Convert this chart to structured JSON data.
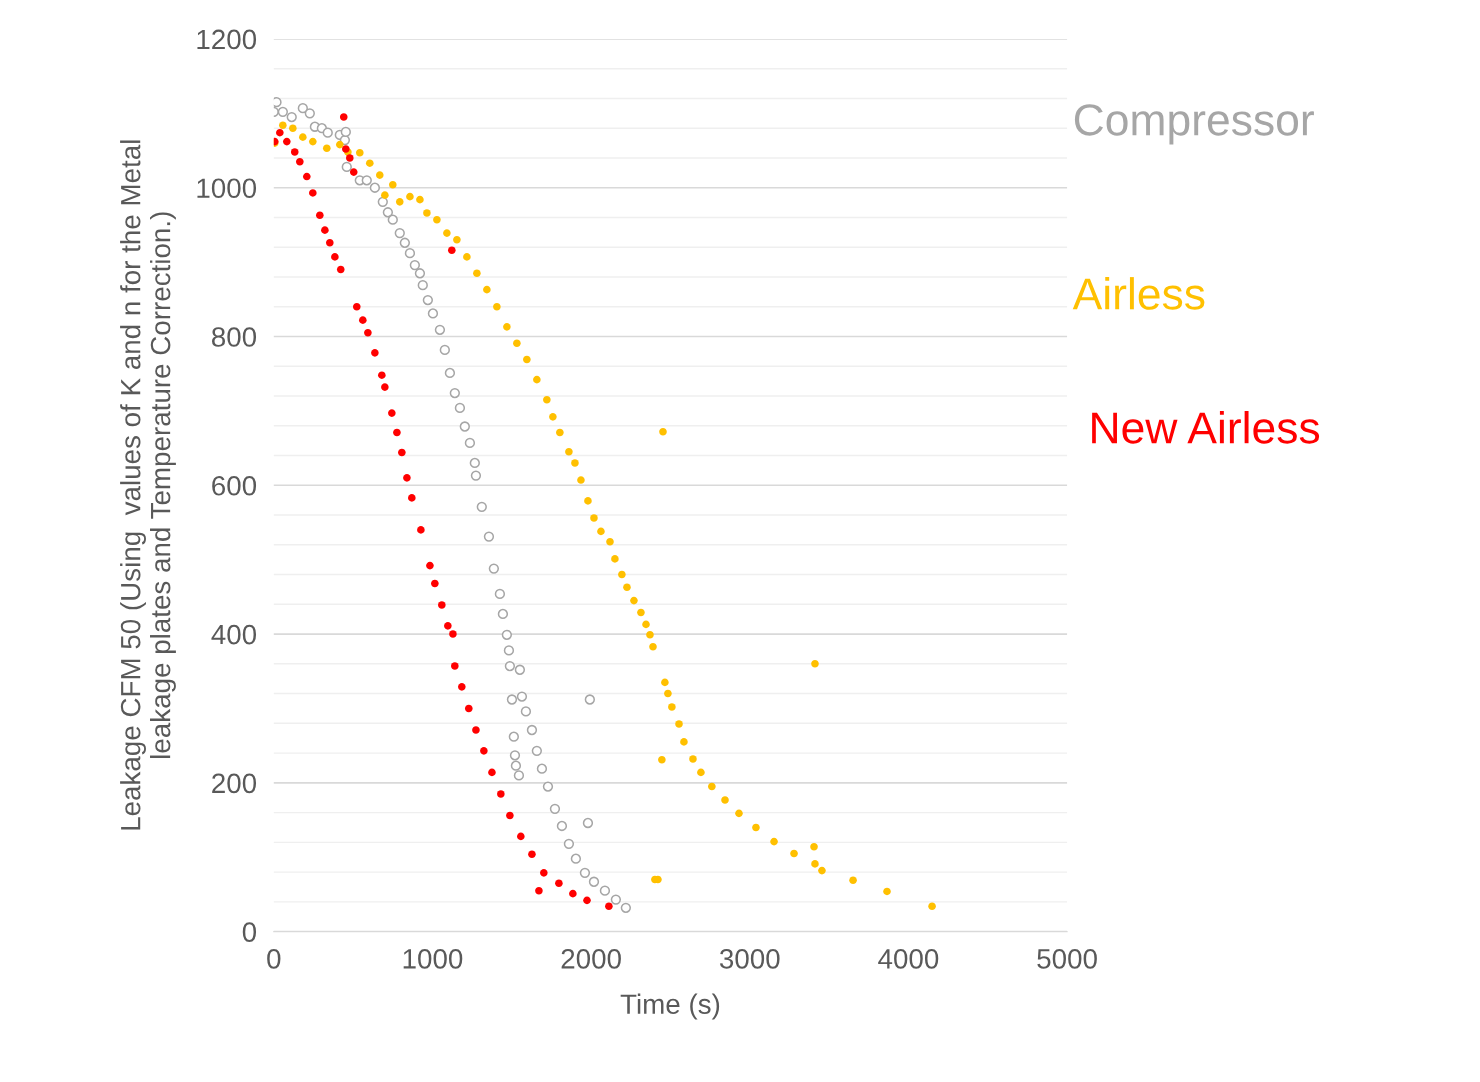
{
  "chart_data": {
    "type": "scatter",
    "xlabel": "Time (s)",
    "ylabel": "Leakage CFM 50 (Using  values of K and n for the Metal\nleakage plates and Temperature Correction.)",
    "xlim": [
      0,
      5000
    ],
    "xticks": [
      0,
      1000,
      2000,
      3000,
      4000,
      5000
    ],
    "ylim": [
      0,
      1200
    ],
    "yticks": [
      0,
      {
        "value": 40,
        "label": null
      },
      {
        "value": 80,
        "label": null
      },
      {
        "value": 120,
        "label": null
      },
      {
        "value": 160,
        "label": null
      },
      200,
      {
        "value": 240,
        "label": null
      },
      {
        "value": 280,
        "label": null
      },
      {
        "value": 320,
        "label": null
      },
      {
        "value": 360,
        "label": null
      },
      400,
      {
        "value": 440,
        "label": null
      },
      {
        "value": 480,
        "label": null
      },
      {
        "value": 520,
        "label": null
      },
      {
        "value": 560,
        "label": null
      },
      600,
      {
        "value": 640,
        "label": null
      },
      {
        "value": 680,
        "label": null
      },
      {
        "value": 720,
        "label": null
      },
      {
        "value": 760,
        "label": null
      },
      800,
      {
        "value": 840,
        "label": null
      },
      {
        "value": 880,
        "label": null
      },
      {
        "value": 920,
        "label": null
      },
      {
        "value": 960,
        "label": null
      },
      1000,
      {
        "value": 1040,
        "label": null
      },
      {
        "value": 1080,
        "label": null
      },
      {
        "value": 1120,
        "label": null
      },
      {
        "value": 1160,
        "label": null
      },
      1200
    ],
    "grid": "y",
    "marker": "circle",
    "legend": "right",
    "series": [
      {
        "name": "Compressor",
        "color": "#a6a6a6",
        "x": [
          0,
          17,
          57,
          113,
          183,
          227,
          259,
          303,
          340,
          416,
          448,
          454,
          460,
          542,
          586,
          637,
          687,
          719,
          750,
          794,
          826,
          858,
          889,
          921,
          939,
          971,
          1003,
          1047,
          1078,
          1110,
          1141,
          1173,
          1204,
          1236,
          1267,
          1274,
          1311,
          1356,
          1387,
          1425,
          1444,
          1469,
          1482,
          1488,
          1501,
          1513,
          1520,
          1526,
          1545,
          1551,
          1564,
          1589,
          1627,
          1658,
          1690,
          1728,
          1772,
          1816,
          1860,
          1904,
          1961,
          1980,
          1992,
          2018,
          2087,
          2156,
          2219
        ],
        "values": [
          1102,
          1115,
          1102,
          1095,
          1107,
          1100,
          1082,
          1080,
          1074,
          1071,
          1064,
          1075,
          1028,
          1010,
          1010,
          1000,
          981,
          967,
          957,
          939,
          926,
          912,
          896,
          885,
          869,
          849,
          831,
          809,
          782,
          751,
          724,
          704,
          679,
          657,
          630,
          613,
          571,
          531,
          488,
          454,
          427,
          399,
          378,
          357,
          312,
          262,
          237,
          223,
          210,
          352,
          316,
          296,
          271,
          243,
          219,
          195,
          165,
          142,
          118,
          98,
          79,
          146,
          312,
          67,
          55,
          43,
          32
        ]
      },
      {
        "name": "Airless",
        "color": "#ffc000",
        "x": [
          6,
          57,
          120,
          183,
          246,
          334,
          416,
          467,
          542,
          605,
          668,
          700,
          750,
          794,
          858,
          921,
          965,
          1028,
          1091,
          1154,
          1217,
          1280,
          1343,
          1406,
          1469,
          1532,
          1595,
          1658,
          1721,
          1759,
          1803,
          1860,
          1898,
          1936,
          1980,
          2018,
          2062,
          2119,
          2150,
          2194,
          2226,
          2270,
          2314,
          2346,
          2371,
          2390,
          2402,
          2421,
          2446,
          2453,
          2465,
          2484,
          2509,
          2554,
          2585,
          2642,
          2692,
          2761,
          2844,
          2932,
          3039,
          3153,
          3279,
          3405,
          3411,
          3411,
          3455,
          3651,
          3865,
          4149
        ],
        "values": [
          1060,
          1084,
          1080,
          1068,
          1062,
          1053,
          1058,
          1048,
          1047,
          1033,
          1017,
          990,
          1004,
          981,
          988,
          984,
          966,
          957,
          939,
          930,
          907,
          885,
          863,
          840,
          813,
          791,
          769,
          742,
          715,
          692,
          671,
          645,
          630,
          607,
          579,
          556,
          538,
          524,
          501,
          480,
          463,
          445,
          429,
          413,
          399,
          383,
          70,
          70,
          231,
          672,
          335,
          320,
          302,
          279,
          255,
          232,
          214,
          195,
          177,
          159,
          140,
          121,
          105,
          114,
          91,
          360,
          82,
          69,
          54,
          34
        ]
      },
      {
        "name": "New Airless",
        "color": "#ff0000",
        "x": [
          6,
          38,
          82,
          132,
          164,
          208,
          246,
          290,
          322,
          353,
          385,
          422,
          441,
          454,
          479,
          504,
          523,
          561,
          593,
          637,
          681,
          700,
          744,
          776,
          807,
          839,
          870,
          927,
          984,
          1015,
          1059,
          1097,
          1122,
          1129,
          1141,
          1185,
          1229,
          1274,
          1324,
          1375,
          1431,
          1488,
          1557,
          1627,
          1671,
          1702,
          1797,
          1885,
          1974,
          2112
        ],
        "values": [
          1062,
          1074,
          1062,
          1048,
          1035,
          1015,
          993,
          963,
          943,
          926,
          907,
          890,
          1095,
          1052,
          1040,
          1021,
          840,
          822,
          805,
          778,
          748,
          732,
          697,
          671,
          644,
          610,
          583,
          540,
          492,
          468,
          439,
          411,
          916,
          400,
          357,
          329,
          300,
          271,
          243,
          214,
          185,
          156,
          128,
          104,
          55,
          79,
          65,
          51,
          42,
          34
        ]
      }
    ]
  }
}
